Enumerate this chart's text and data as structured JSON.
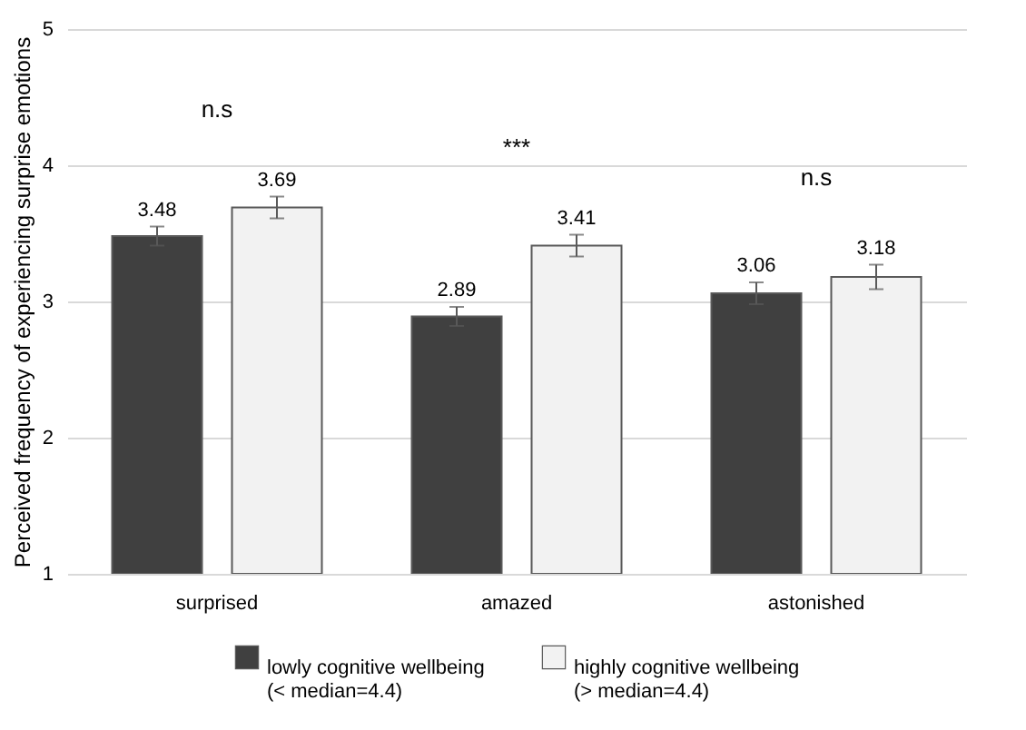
{
  "chart_data": {
    "type": "bar",
    "ylabel": "Perceived frequency of experiencing surprise emotions",
    "categories": [
      "surprised",
      "amazed",
      "astonished"
    ],
    "series": [
      {
        "name": "lowly cognitive wellbeing\n(< median=4.4)",
        "color": "#404040",
        "values": [
          3.48,
          2.89,
          3.06
        ],
        "errors": [
          0.07,
          0.07,
          0.08
        ]
      },
      {
        "name": "highly cognitive wellbeing\n(> median=4.4)",
        "color": "#f2f2f2",
        "values": [
          3.69,
          3.41,
          3.18
        ],
        "errors": [
          0.08,
          0.08,
          0.09
        ]
      }
    ],
    "ylim": [
      1,
      5
    ],
    "yticks": [
      1,
      2,
      3,
      4,
      5
    ],
    "grid": "y",
    "legend": "bottom",
    "data_labels": true,
    "annotations": [
      "n.s",
      "***",
      "n.s"
    ]
  }
}
